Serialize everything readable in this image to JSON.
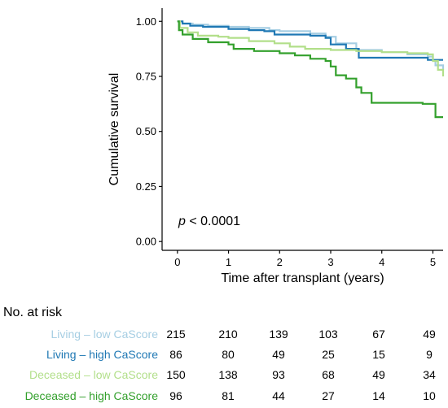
{
  "chart_data": {
    "type": "line",
    "title": "",
    "xlabel": "Time after transplant (years)",
    "ylabel": "Cumulative survival",
    "xlim": [
      -0.3,
      5.2
    ],
    "ylim": [
      -0.04,
      1.06
    ],
    "x_ticks": [
      0,
      1,
      2,
      3,
      4,
      5
    ],
    "x_tick_labels": [
      "0",
      "1",
      "2",
      "3",
      "4",
      "5"
    ],
    "y_ticks": [
      0,
      0.25,
      0.5,
      0.75,
      1.0
    ],
    "y_tick_labels": [
      "0.00",
      "0.25",
      "0.50",
      "0.75",
      "1.00"
    ],
    "grid": false,
    "legend": "none",
    "annotation": {
      "italic": "p",
      "rest": " < 0.0001"
    },
    "series": [
      {
        "name": "Living – low CaScore",
        "color": "#a6cee3",
        "points": [
          [
            0,
            1.0
          ],
          [
            0.1,
            0.99
          ],
          [
            0.3,
            0.985
          ],
          [
            0.6,
            0.98
          ],
          [
            1.0,
            0.975
          ],
          [
            1.4,
            0.97
          ],
          [
            1.8,
            0.96
          ],
          [
            2.0,
            0.955
          ],
          [
            2.6,
            0.945
          ],
          [
            2.9,
            0.93
          ],
          [
            3.1,
            0.9
          ],
          [
            3.5,
            0.87
          ],
          [
            4.0,
            0.86
          ],
          [
            4.5,
            0.85
          ],
          [
            4.9,
            0.84
          ],
          [
            5.0,
            0.82
          ],
          [
            5.05,
            0.8
          ],
          [
            5.2,
            0.78
          ]
        ]
      },
      {
        "name": "Living – high CaScore",
        "color": "#1f78b4",
        "points": [
          [
            0,
            1.0
          ],
          [
            0.1,
            0.99
          ],
          [
            0.25,
            0.98
          ],
          [
            0.5,
            0.975
          ],
          [
            1.0,
            0.965
          ],
          [
            1.4,
            0.96
          ],
          [
            1.7,
            0.955
          ],
          [
            1.9,
            0.94
          ],
          [
            2.6,
            0.935
          ],
          [
            2.9,
            0.925
          ],
          [
            3.0,
            0.895
          ],
          [
            3.3,
            0.875
          ],
          [
            3.5,
            0.875
          ],
          [
            3.55,
            0.835
          ],
          [
            4.8,
            0.835
          ],
          [
            4.9,
            0.825
          ],
          [
            5.2,
            0.825
          ]
        ]
      },
      {
        "name": "Deceased – low CaScore",
        "color": "#b2df8a",
        "points": [
          [
            0,
            1.0
          ],
          [
            0.05,
            0.97
          ],
          [
            0.2,
            0.95
          ],
          [
            0.4,
            0.935
          ],
          [
            0.8,
            0.93
          ],
          [
            1.0,
            0.925
          ],
          [
            1.4,
            0.91
          ],
          [
            1.9,
            0.9
          ],
          [
            2.2,
            0.885
          ],
          [
            2.5,
            0.875
          ],
          [
            3.0,
            0.87
          ],
          [
            3.5,
            0.865
          ],
          [
            4.0,
            0.86
          ],
          [
            4.5,
            0.855
          ],
          [
            4.9,
            0.85
          ],
          [
            5.0,
            0.82
          ],
          [
            5.1,
            0.78
          ],
          [
            5.2,
            0.75
          ]
        ]
      },
      {
        "name": "Deceased – high CaScore",
        "color": "#33a02c",
        "points": [
          [
            0,
            1.0
          ],
          [
            0.03,
            0.96
          ],
          [
            0.1,
            0.94
          ],
          [
            0.3,
            0.92
          ],
          [
            0.6,
            0.905
          ],
          [
            1.0,
            0.895
          ],
          [
            1.1,
            0.875
          ],
          [
            1.5,
            0.865
          ],
          [
            2.0,
            0.855
          ],
          [
            2.3,
            0.845
          ],
          [
            2.6,
            0.83
          ],
          [
            2.9,
            0.82
          ],
          [
            3.0,
            0.795
          ],
          [
            3.1,
            0.755
          ],
          [
            3.3,
            0.74
          ],
          [
            3.5,
            0.7
          ],
          [
            3.6,
            0.675
          ],
          [
            3.8,
            0.63
          ],
          [
            4.3,
            0.63
          ],
          [
            4.8,
            0.625
          ],
          [
            5.05,
            0.565
          ],
          [
            5.2,
            0.565
          ]
        ]
      }
    ],
    "risk_table": {
      "title": "No. at risk",
      "time_points": [
        0,
        1,
        2,
        3,
        4,
        5
      ],
      "rows": [
        {
          "name": "Living – low CaScore",
          "color": "#a6cee3",
          "values": [
            "215",
            "210",
            "139",
            "103",
            "67",
            "49"
          ]
        },
        {
          "name": "Living – high CaScore",
          "color": "#1f78b4",
          "values": [
            "86",
            "80",
            "49",
            "25",
            "15",
            "9"
          ]
        },
        {
          "name": "Deceased – low CaScore",
          "color": "#b2df8a",
          "values": [
            "150",
            "138",
            "93",
            "68",
            "49",
            "34"
          ]
        },
        {
          "name": "Deceased – high CaScore",
          "color": "#33a02c",
          "values": [
            "96",
            "81",
            "44",
            "27",
            "14",
            "10"
          ]
        }
      ]
    }
  }
}
